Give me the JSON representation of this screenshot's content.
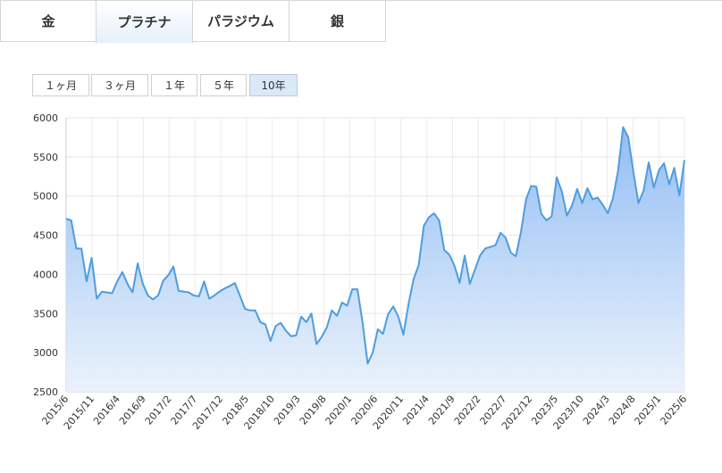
{
  "tabs": [
    {
      "label": "金"
    },
    {
      "label": "プラチナ",
      "active": true
    },
    {
      "label": "パラジウム"
    },
    {
      "label": "銀"
    }
  ],
  "ranges": [
    {
      "label": "１ヶ月"
    },
    {
      "label": "３ヶ月"
    },
    {
      "label": "１年"
    },
    {
      "label": "５年"
    },
    {
      "label": "10年",
      "active": true
    }
  ],
  "colors": {
    "line": "#4d9de0",
    "fill_top": "#8dbaf2",
    "fill_bottom": "#e8f1fc",
    "tab_active": "#e6f0fb",
    "range_active": "#dbe8f7"
  },
  "chart_data": {
    "type": "area",
    "title": "",
    "xlabel": "",
    "ylabel": "",
    "ylim": [
      2500,
      6000
    ],
    "yticks": [
      2500,
      3000,
      3500,
      4000,
      4500,
      5000,
      5500,
      6000
    ],
    "xticks": [
      "2015/6",
      "2015/11",
      "2016/4",
      "2016/9",
      "2017/2",
      "2017/7",
      "2017/12",
      "2018/5",
      "2018/10",
      "2019/3",
      "2019/8",
      "2020/1",
      "2020/6",
      "2020/11",
      "2021/4",
      "2021/9",
      "2022/2",
      "2022/7",
      "2022/12",
      "2023/5",
      "2023/10",
      "2024/3",
      "2024/8",
      "2025/1",
      "2025/6"
    ],
    "grid": true,
    "series": [
      {
        "values": [
          4710,
          4690,
          4330,
          4330,
          3910,
          4210,
          3690,
          3780,
          3770,
          3760,
          3910,
          4030,
          3880,
          3770,
          4140,
          3880,
          3730,
          3680,
          3730,
          3920,
          3990,
          4100,
          3790,
          3780,
          3770,
          3730,
          3720,
          3910,
          3690,
          3730,
          3780,
          3820,
          3850,
          3890,
          3730,
          3560,
          3540,
          3540,
          3390,
          3360,
          3150,
          3340,
          3380,
          3280,
          3210,
          3220,
          3460,
          3390,
          3500,
          3110,
          3200,
          3320,
          3540,
          3470,
          3640,
          3600,
          3810,
          3810,
          3390,
          2860,
          3000,
          3300,
          3240,
          3490,
          3590,
          3460,
          3230,
          3620,
          3940,
          4120,
          4620,
          4730,
          4780,
          4690,
          4310,
          4250,
          4110,
          3890,
          4240,
          3880,
          4060,
          4240,
          4330,
          4350,
          4370,
          4530,
          4470,
          4280,
          4230,
          4540,
          4960,
          5130,
          5120,
          4770,
          4690,
          4740,
          5240,
          5060,
          4750,
          4880,
          5090,
          4910,
          5100,
          4960,
          4980,
          4890,
          4780,
          4970,
          5320,
          5880,
          5750,
          5310,
          4910,
          5070,
          5430,
          5110,
          5330,
          5420,
          5150,
          5360,
          5010,
          5460
        ]
      }
    ]
  }
}
